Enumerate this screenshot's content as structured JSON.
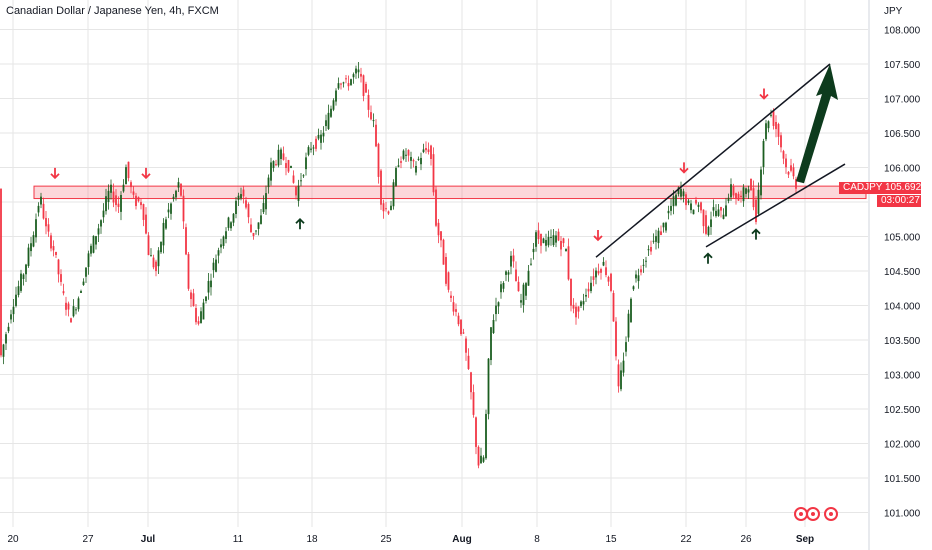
{
  "header": {
    "title": "Canadian Dollar / Japanese Yen, 4h, FXCM"
  },
  "price_axis": {
    "currency": "JPY"
  },
  "price_tag": {
    "symbol": "CADJPY",
    "price": "105.692",
    "countdown": "03:00:27"
  },
  "colors": {
    "up": "#1b5e20",
    "down": "#f23645",
    "zone": "#f23645",
    "arrow": "#0d3b1d",
    "grid": "#e6e6e6"
  },
  "icons": [
    "target-icon",
    "play-icon",
    "record-icon"
  ],
  "chart_data": {
    "type": "candlestick",
    "symbol": "CADJPY",
    "timeframe": "4h",
    "ylim": [
      101.0,
      108.0
    ],
    "y_ticks": [
      "101.000",
      "101.500",
      "102.000",
      "102.500",
      "103.000",
      "103.500",
      "104.000",
      "104.500",
      "105.000",
      "105.500",
      "106.000",
      "106.500",
      "107.000",
      "107.500",
      "108.000"
    ],
    "x_ticks": [
      "20",
      "27",
      "Jul",
      "11",
      "18",
      "25",
      "Aug",
      "8",
      "15",
      "22",
      "26",
      "Sep"
    ],
    "path": [
      [
        0,
        103.2
      ],
      [
        12,
        104.0
      ],
      [
        24,
        104.5
      ],
      [
        34,
        105.1
      ],
      [
        40,
        105.6
      ],
      [
        46,
        105.1
      ],
      [
        54,
        104.8
      ],
      [
        62,
        104.2
      ],
      [
        70,
        103.8
      ],
      [
        78,
        104.1
      ],
      [
        90,
        104.8
      ],
      [
        100,
        105.2
      ],
      [
        110,
        105.7
      ],
      [
        118,
        105.4
      ],
      [
        126,
        106.0
      ],
      [
        134,
        105.5
      ],
      [
        142,
        105.5
      ],
      [
        148,
        104.8
      ],
      [
        156,
        104.5
      ],
      [
        164,
        105.2
      ],
      [
        172,
        105.5
      ],
      [
        180,
        105.8
      ],
      [
        188,
        104.3
      ],
      [
        198,
        103.7
      ],
      [
        206,
        104.2
      ],
      [
        214,
        104.6
      ],
      [
        222,
        105.0
      ],
      [
        232,
        105.3
      ],
      [
        242,
        105.7
      ],
      [
        252,
        105.0
      ],
      [
        262,
        105.3
      ],
      [
        270,
        106.0
      ],
      [
        280,
        106.2
      ],
      [
        290,
        106.0
      ],
      [
        296,
        105.6
      ],
      [
        300,
        105.8
      ],
      [
        310,
        106.3
      ],
      [
        320,
        106.4
      ],
      [
        330,
        106.8
      ],
      [
        338,
        107.3
      ],
      [
        346,
        107.2
      ],
      [
        352,
        107.3
      ],
      [
        358,
        107.4
      ],
      [
        366,
        107.0
      ],
      [
        374,
        106.6
      ],
      [
        382,
        105.4
      ],
      [
        390,
        105.4
      ],
      [
        398,
        106.1
      ],
      [
        406,
        106.2
      ],
      [
        414,
        106.0
      ],
      [
        422,
        106.2
      ],
      [
        430,
        106.3
      ],
      [
        436,
        105.2
      ],
      [
        442,
        104.8
      ],
      [
        448,
        104.2
      ],
      [
        456,
        103.9
      ],
      [
        464,
        103.5
      ],
      [
        472,
        102.6
      ],
      [
        478,
        101.7
      ],
      [
        484,
        101.8
      ],
      [
        490,
        103.6
      ],
      [
        496,
        104.0
      ],
      [
        504,
        104.4
      ],
      [
        512,
        104.7
      ],
      [
        520,
        104.0
      ],
      [
        528,
        104.5
      ],
      [
        536,
        105.0
      ],
      [
        546,
        104.9
      ],
      [
        556,
        105.0
      ],
      [
        566,
        104.8
      ],
      [
        572,
        103.9
      ],
      [
        578,
        103.9
      ],
      [
        586,
        104.2
      ],
      [
        596,
        104.5
      ],
      [
        604,
        104.6
      ],
      [
        612,
        104.2
      ],
      [
        618,
        102.7
      ],
      [
        626,
        103.5
      ],
      [
        632,
        104.3
      ],
      [
        642,
        104.6
      ],
      [
        652,
        104.9
      ],
      [
        662,
        105.1
      ],
      [
        670,
        105.4
      ],
      [
        680,
        105.7
      ],
      [
        690,
        105.4
      ],
      [
        698,
        105.5
      ],
      [
        706,
        105.1
      ],
      [
        714,
        105.4
      ],
      [
        722,
        105.3
      ],
      [
        730,
        105.7
      ],
      [
        740,
        105.5
      ],
      [
        748,
        105.8
      ],
      [
        756,
        105.3
      ],
      [
        764,
        106.5
      ],
      [
        770,
        106.8
      ],
      [
        778,
        106.5
      ],
      [
        786,
        106.0
      ],
      [
        792,
        105.9
      ],
      [
        798,
        105.69
      ]
    ],
    "annotations": {
      "resistance_zone": [
        105.55,
        105.73
      ],
      "channel_upper": [
        [
          596,
          104.7
        ],
        [
          830,
          107.5
        ]
      ],
      "channel_lower": [
        [
          706,
          104.85
        ],
        [
          845,
          106.05
        ]
      ],
      "projection_arrow": {
        "from": [
          800,
          105.8
        ],
        "to": [
          830,
          107.5
        ]
      },
      "down_arrows": [
        [
          55,
          105.85
        ],
        [
          146,
          105.85
        ],
        [
          598,
          104.95
        ],
        [
          684,
          105.93
        ],
        [
          764,
          107.0
        ]
      ],
      "up_arrows": [
        [
          300,
          105.25
        ],
        [
          708,
          104.75
        ],
        [
          756,
          105.1
        ]
      ]
    }
  }
}
